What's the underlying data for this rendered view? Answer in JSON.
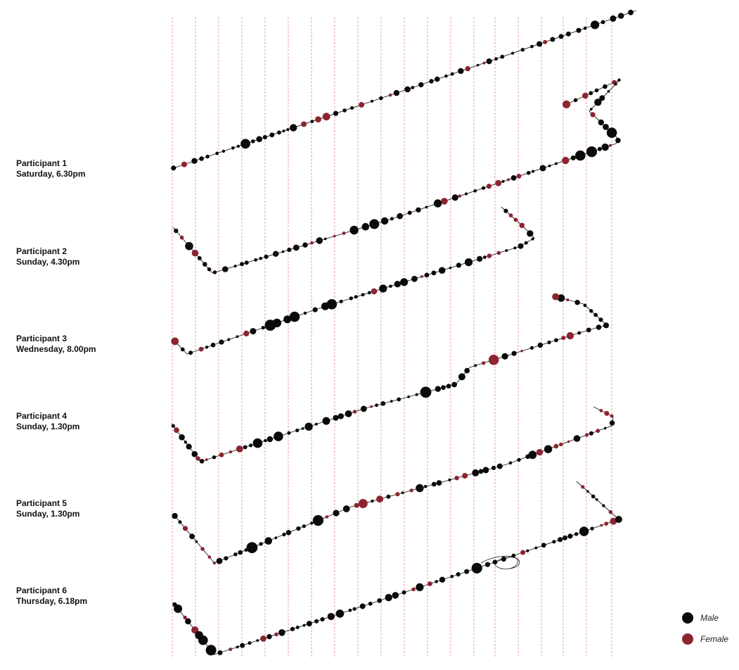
{
  "colors": {
    "male": "#0a0a0a",
    "female": "#8c2530",
    "guide": "#d98a96",
    "path": "#222222"
  },
  "legend": [
    {
      "key": "male",
      "label": "Male"
    },
    {
      "key": "female",
      "label": "Female"
    }
  ],
  "participants": [
    {
      "name": "Participant 1",
      "time": "Saturday, 6.30pm"
    },
    {
      "name": "Participant 2",
      "time": "Sunday, 4.30pm"
    },
    {
      "name": "Participant 3",
      "time": "Wednesday, 8.00pm"
    },
    {
      "name": "Participant 4",
      "time": "Sunday, 1.30pm"
    },
    {
      "name": "Participant 5",
      "time": "Sunday, 1.30pm"
    },
    {
      "name": "Participant 6",
      "time": "Thursday, 6.18pm"
    }
  ]
}
